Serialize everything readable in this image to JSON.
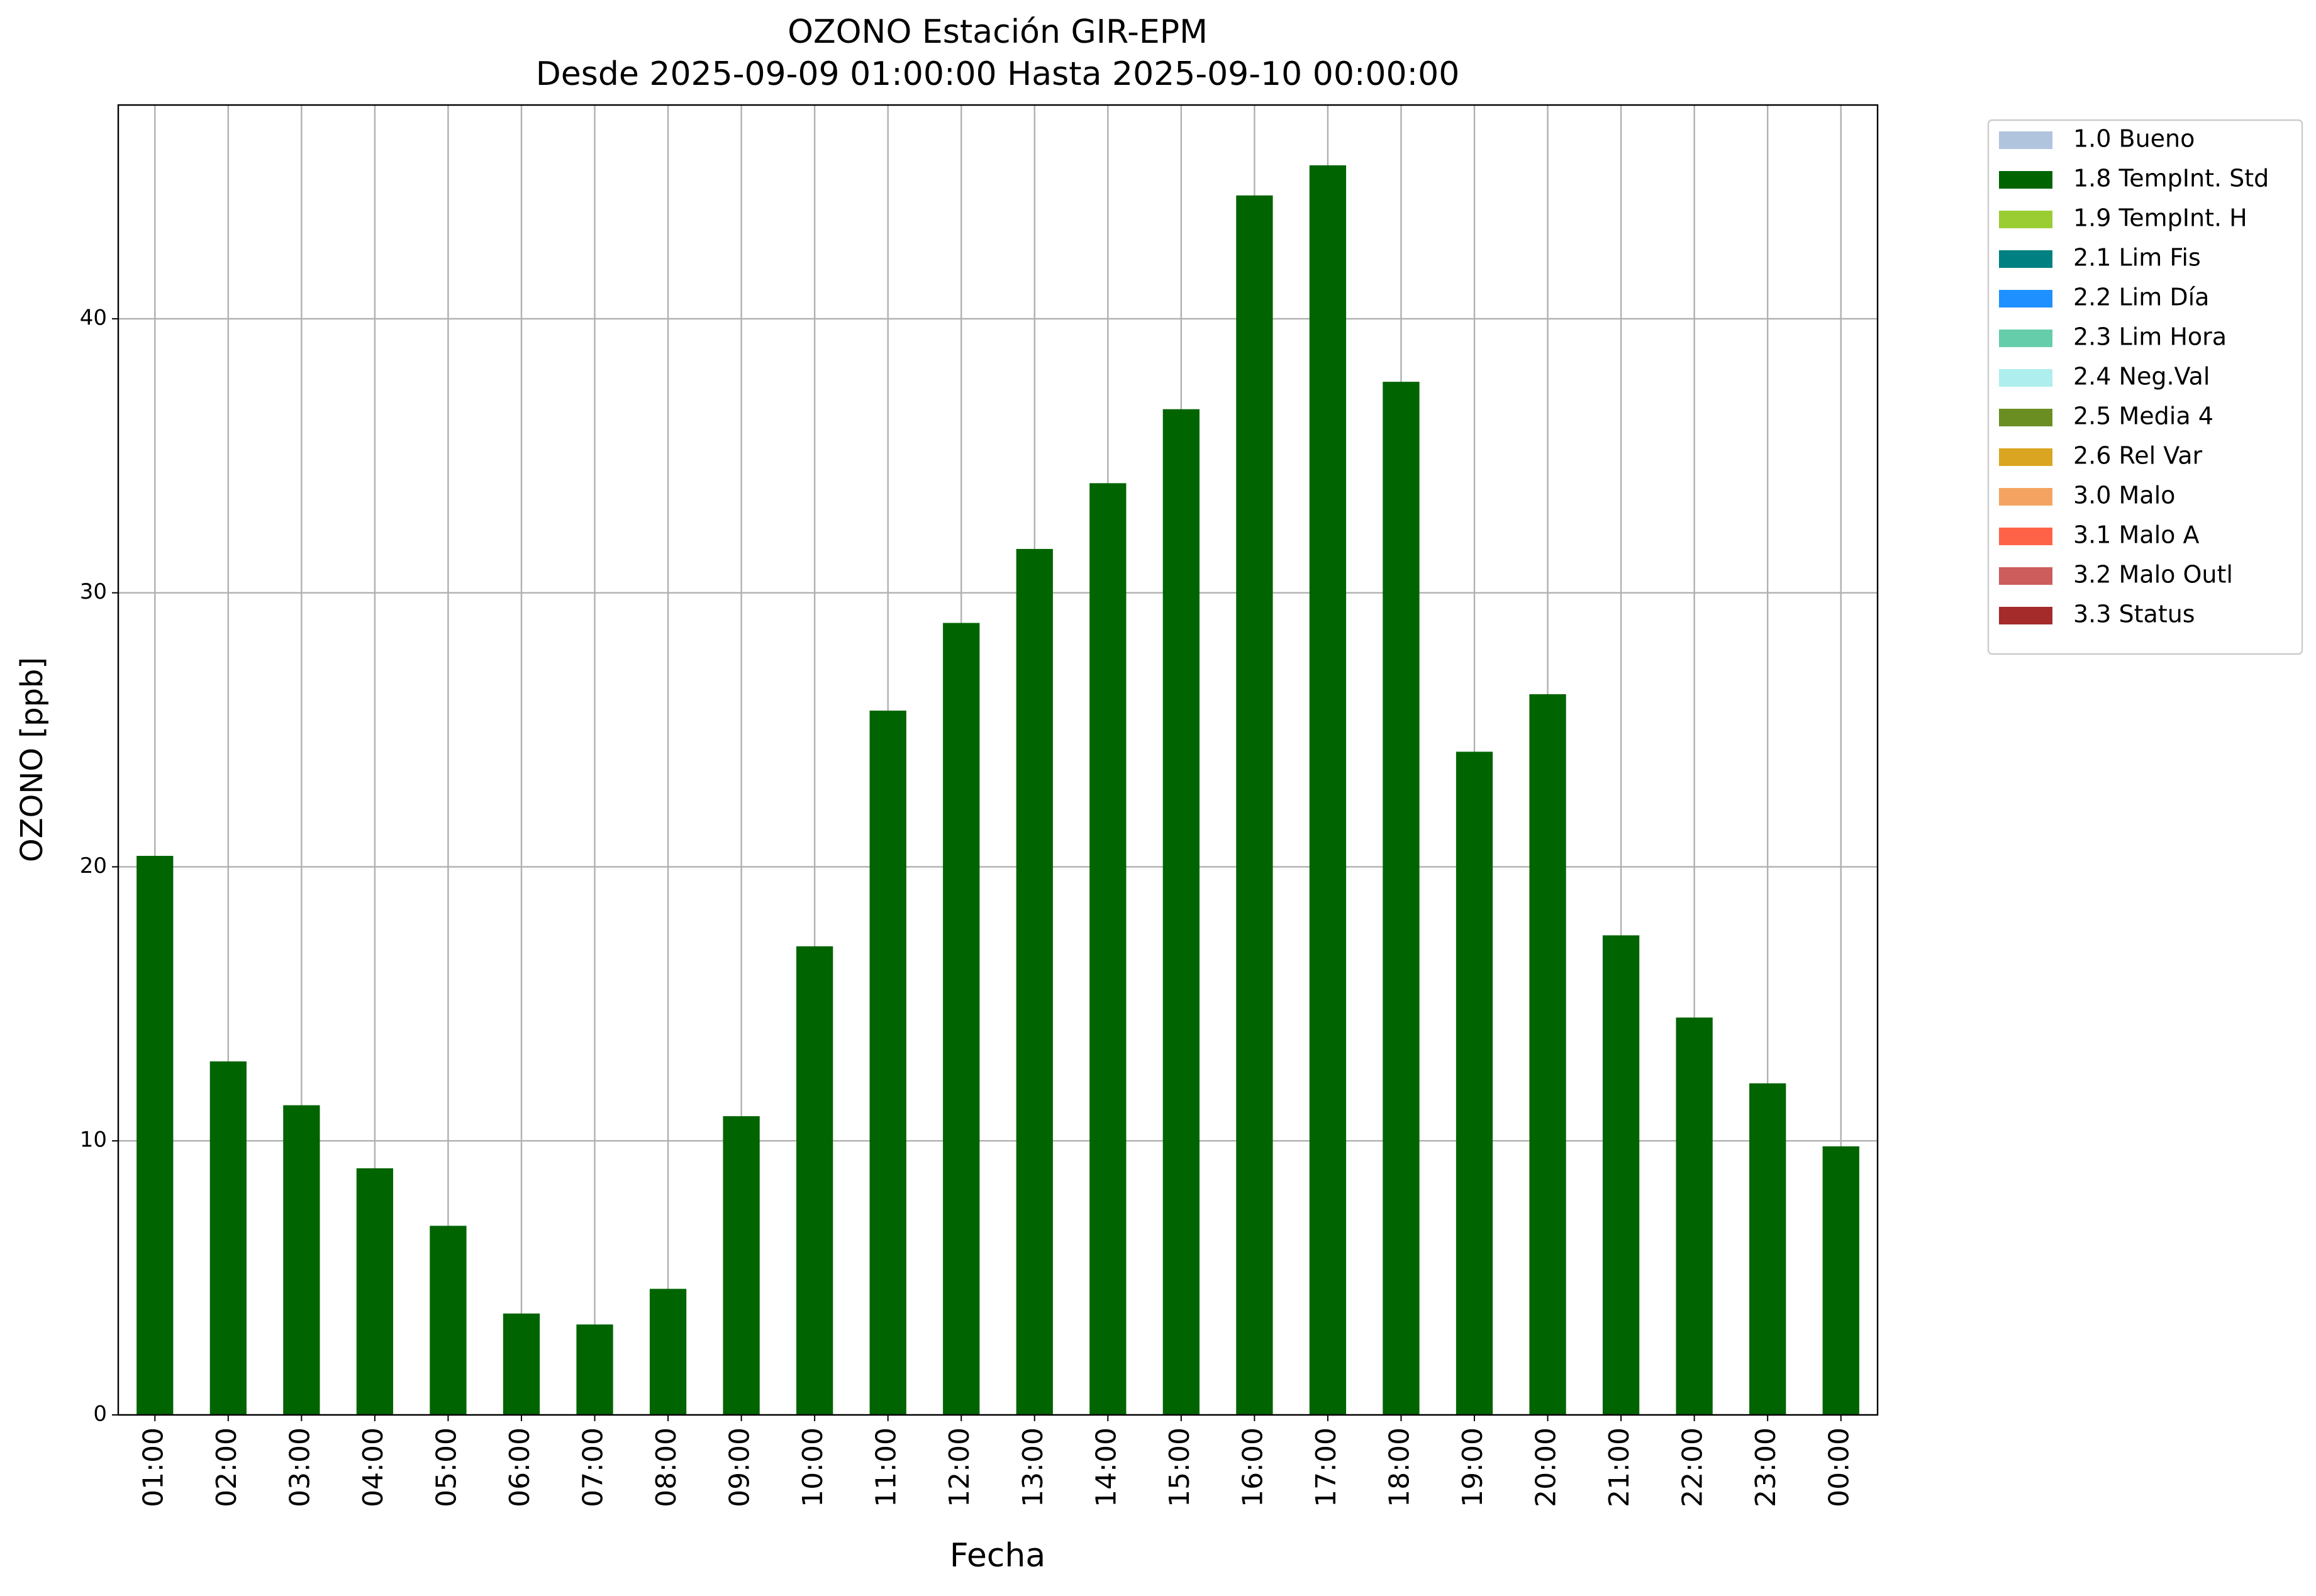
{
  "chart_data": {
    "type": "bar",
    "title": "OZONO Estación GIR-EPM",
    "subtitle": "Desde 2025-09-09 01:00:00 Hasta 2025-09-10 00:00:00",
    "x_label": "Fecha",
    "y_label": "OZONO [ppb]",
    "categories": [
      "01:00",
      "02:00",
      "03:00",
      "04:00",
      "05:00",
      "06:00",
      "07:00",
      "08:00",
      "09:00",
      "10:00",
      "11:00",
      "12:00",
      "13:00",
      "14:00",
      "15:00",
      "16:00",
      "17:00",
      "18:00",
      "19:00",
      "20:00",
      "21:00",
      "22:00",
      "23:00",
      "00:00"
    ],
    "series": [
      {
        "name": "1.0 Bueno",
        "color": "#b0c4de"
      },
      {
        "name": "1.8 TempInt. Std",
        "color": "#006400",
        "values": [
          20.4,
          12.9,
          11.3,
          9.0,
          6.9,
          3.7,
          3.3,
          4.6,
          10.9,
          17.1,
          25.7,
          28.9,
          31.6,
          34.0,
          36.7,
          44.5,
          45.6,
          37.7,
          24.2,
          26.3,
          17.5,
          14.5,
          12.1,
          9.8
        ]
      },
      {
        "name": "1.9 TempInt. H",
        "color": "#9acd32"
      },
      {
        "name": "2.1 Lim Fis",
        "color": "#008080"
      },
      {
        "name": "2.2 Lim Día",
        "color": "#1e90ff"
      },
      {
        "name": "2.3 Lim Hora",
        "color": "#66cdaa"
      },
      {
        "name": "2.4 Neg.Val",
        "color": "#afeeee"
      },
      {
        "name": "2.5 Media 4",
        "color": "#6b8e23"
      },
      {
        "name": "2.6 Rel Var",
        "color": "#daa520"
      },
      {
        "name": "3.0 Malo",
        "color": "#f4a460"
      },
      {
        "name": "3.1 Malo A",
        "color": "#ff6347"
      },
      {
        "name": "3.2 Malo Outl",
        "color": "#cd5c5c"
      },
      {
        "name": "3.3 Status",
        "color": "#a52a2a"
      }
    ],
    "ylim": [
      0,
      47.8
    ],
    "yticks": [
      0,
      10,
      20,
      30,
      40
    ],
    "grid": true,
    "legend": "outside-upper-right"
  }
}
